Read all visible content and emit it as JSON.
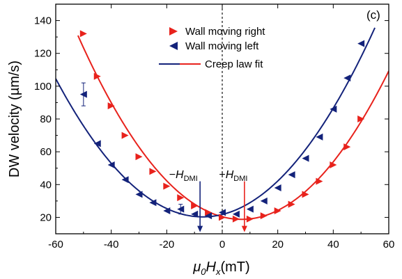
{
  "chart_data": {
    "type": "scatter",
    "panel_label": "(c)",
    "ylabel": "DW velocity (µm/s)",
    "xlabel": {
      "main": "μ",
      "sub0": "0",
      "H": "H",
      "subx": "x",
      "unit": "(mT)"
    },
    "xlim": [
      -60,
      60
    ],
    "ylim": [
      10,
      150
    ],
    "xticks": [
      -60,
      -40,
      -20,
      0,
      20,
      40,
      60
    ],
    "yticks": [
      20,
      40,
      60,
      80,
      100,
      120,
      140
    ],
    "legend_position": "top-center",
    "legend": [
      {
        "label": "Wall moving right",
        "marker": "triangle-right",
        "color": "#e8221c"
      },
      {
        "label": "Wall moving left",
        "marker": "triangle-left",
        "color": "#13227a"
      },
      {
        "label": "Creep law fit",
        "marker": "line",
        "colors": [
          "#13227a",
          "#e8221c"
        ]
      }
    ],
    "series": [
      {
        "name": "Wall moving right",
        "color": "#e8221c",
        "marker": "triangle-right",
        "points": [
          [
            -50,
            132
          ],
          [
            -45,
            106
          ],
          [
            -40,
            88
          ],
          [
            -35,
            70
          ],
          [
            -30,
            57
          ],
          [
            -25,
            48
          ],
          [
            -20,
            39
          ],
          [
            -15,
            32
          ],
          [
            -10,
            27
          ],
          [
            -5,
            23
          ],
          [
            0,
            20
          ],
          [
            5,
            19
          ],
          [
            10,
            19
          ],
          [
            15,
            21
          ],
          [
            20,
            24
          ],
          [
            25,
            28
          ],
          [
            30,
            34
          ],
          [
            35,
            42
          ],
          [
            40,
            52
          ],
          [
            45,
            63
          ],
          [
            50,
            80
          ]
        ]
      },
      {
        "name": "Wall moving left",
        "color": "#13227a",
        "marker": "triangle-left",
        "points": [
          [
            -50,
            95
          ],
          [
            -45,
            65
          ],
          [
            -40,
            52
          ],
          [
            -35,
            43
          ],
          [
            -30,
            34
          ],
          [
            -25,
            29
          ],
          [
            -20,
            24
          ],
          [
            -15,
            25
          ],
          [
            -10,
            22
          ],
          [
            -5,
            21
          ],
          [
            0,
            23
          ],
          [
            5,
            22
          ],
          [
            10,
            25
          ],
          [
            15,
            30
          ],
          [
            20,
            38
          ],
          [
            25,
            46
          ],
          [
            30,
            56
          ],
          [
            35,
            69
          ],
          [
            40,
            86
          ],
          [
            45,
            105
          ],
          [
            50,
            126
          ]
        ]
      }
    ],
    "error_bars": [
      {
        "x": -50,
        "low": 88,
        "high": 102,
        "color": "#13227a"
      },
      {
        "x": -15,
        "low": 22,
        "high": 28,
        "color": "#13227a"
      }
    ],
    "fits": [
      {
        "name": "Creep law fit (wall moving right)",
        "color": "#e8221c",
        "vertex_x": 7,
        "vertex_y": 18.8,
        "a": 0.0322,
        "x_from": -52,
        "x_to": 60
      },
      {
        "name": "Creep law fit (wall moving left)",
        "color": "#13227a",
        "vertex_x": -7,
        "vertex_y": 20.3,
        "a": 0.03,
        "x_from": -60,
        "x_to": 55
      }
    ],
    "reference_line": {
      "x": 0,
      "style": "dotted"
    },
    "annotations": [
      {
        "sign": "−",
        "H": "H",
        "sub": "DMI",
        "color": "#13227a",
        "arrow_x": -8,
        "arrow_from_y": 42,
        "arrow_to_y": 11,
        "label_x": -14,
        "label_y": 44
      },
      {
        "sign": "+",
        "H": "H",
        "sub": "DMI",
        "color": "#e8221c",
        "arrow_x": 8,
        "arrow_from_y": 42,
        "arrow_to_y": 11,
        "label_x": 4,
        "label_y": 44
      }
    ]
  }
}
